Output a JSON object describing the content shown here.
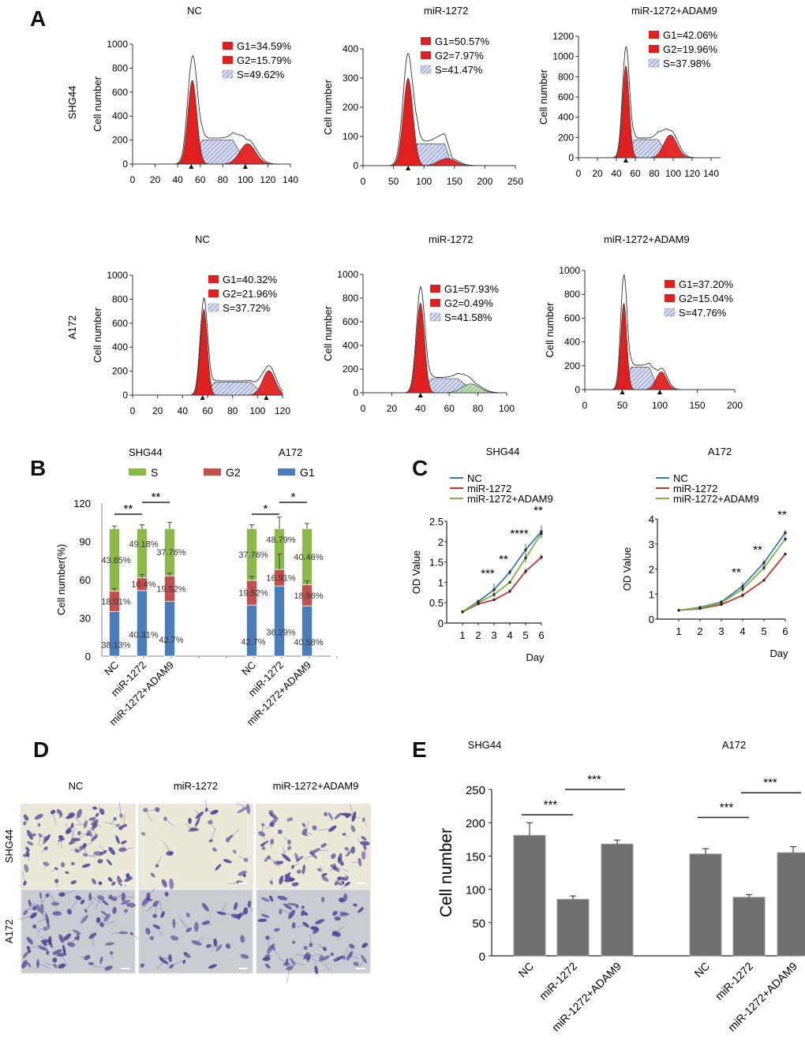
{
  "panels": {
    "A": "A",
    "B": "B",
    "C": "C",
    "D": "D",
    "E": "E"
  },
  "chart_data": [
    {
      "id": "A-SHG44-NC",
      "panel": "A",
      "type": "area",
      "title": "NC",
      "row_label": "SHG44",
      "xlabel": "",
      "ylabel": "Cell number",
      "xlim": [
        0,
        140
      ],
      "xticks": [
        0,
        20,
        40,
        60,
        80,
        100,
        120,
        140
      ],
      "ylim": [
        0,
        1000
      ],
      "yticks": [
        0,
        200,
        400,
        600,
        800,
        1000
      ],
      "legend": [
        {
          "name": "G1",
          "text": "G1=34.59%"
        },
        {
          "name": "G2",
          "text": "G2=15.79%"
        },
        {
          "name": "S",
          "text": "S=49.62%"
        }
      ],
      "peaks": {
        "g1_center": 53,
        "g1_height": 700,
        "g1_width": 4,
        "g2_center": 102,
        "g2_height": 170,
        "g2_width": 7,
        "s_start": 58,
        "s_end": 95,
        "s_height": 200,
        "total_peak": 880
      },
      "markers": [
        52,
        100
      ]
    },
    {
      "id": "A-SHG44-miR",
      "panel": "A",
      "type": "area",
      "title": "miR-1272",
      "row_label": "",
      "xlabel": "",
      "ylabel": "Cell number",
      "xlim": [
        0,
        250
      ],
      "xticks": [
        0,
        50,
        100,
        150,
        200,
        250
      ],
      "ylim": [
        0,
        400
      ],
      "yticks": [
        0,
        100,
        200,
        300,
        400
      ],
      "legend": [
        {
          "name": "G1",
          "text": "G1=50.57%"
        },
        {
          "name": "G2",
          "text": "G2=7.97%"
        },
        {
          "name": "S",
          "text": "S=41.47%"
        }
      ],
      "peaks": {
        "g1_center": 74,
        "g1_height": 300,
        "g1_width": 8,
        "g2_center": 138,
        "g2_height": 25,
        "g2_width": 14,
        "s_start": 85,
        "s_end": 140,
        "s_height": 75,
        "total_peak": 385
      },
      "markers": [
        74
      ]
    },
    {
      "id": "A-SHG44-miRADAM9",
      "panel": "A",
      "type": "area",
      "title": "miR-1272+ADAM9",
      "row_label": "",
      "xlabel": "",
      "ylabel": "Cell number",
      "xlim": [
        0,
        150
      ],
      "xticks": [
        0,
        20,
        40,
        60,
        80,
        100,
        120,
        140
      ],
      "ylim": [
        0,
        1200
      ],
      "yticks": [
        0,
        200,
        400,
        600,
        800,
        1000,
        1200
      ],
      "legend": [
        {
          "name": "G1",
          "text": "G1=42.06%"
        },
        {
          "name": "G2",
          "text": "G2=19.96%"
        },
        {
          "name": "S",
          "text": "S=37.98%"
        }
      ],
      "peaks": {
        "g1_center": 50,
        "g1_height": 910,
        "g1_width": 3.5,
        "g2_center": 97,
        "g2_height": 225,
        "g2_width": 7,
        "s_start": 55,
        "s_end": 90,
        "s_height": 180,
        "total_peak": 1080
      },
      "markers": [
        50
      ]
    },
    {
      "id": "A-A172-NC",
      "panel": "A",
      "type": "area",
      "title": "NC",
      "row_label": "A172",
      "xlabel": "",
      "ylabel": "Cell number",
      "xlim": [
        0,
        120
      ],
      "xticks": [
        0,
        20,
        40,
        60,
        80,
        100,
        120
      ],
      "ylim": [
        0,
        1000
      ],
      "yticks": [
        0,
        200,
        400,
        600,
        800,
        1000
      ],
      "legend": [
        {
          "name": "G1",
          "text": "G1=40.32%"
        },
        {
          "name": "G2",
          "text": "G2=21.96%"
        },
        {
          "name": "S",
          "text": "S=37.72%"
        }
      ],
      "peaks": {
        "g1_center": 57,
        "g1_height": 720,
        "g1_width": 2.8,
        "g2_center": 109,
        "g2_height": 205,
        "g2_width": 5,
        "s_start": 62,
        "s_end": 100,
        "s_height": 110,
        "total_peak": 800
      },
      "markers": [
        56,
        107
      ]
    },
    {
      "id": "A-A172-miR",
      "panel": "A",
      "type": "area",
      "title": "miR-1272",
      "row_label": "",
      "xlabel": "",
      "ylabel": "Cell number",
      "xlim": [
        0,
        100
      ],
      "xticks": [
        0,
        20,
        40,
        60,
        80,
        100
      ],
      "ylim": [
        0,
        1000
      ],
      "yticks": [
        0,
        200,
        400,
        600,
        800,
        1000
      ],
      "legend": [
        {
          "name": "G1",
          "text": "G1=57.93%"
        },
        {
          "name": "G2",
          "text": "G2=0.49%"
        },
        {
          "name": "S",
          "text": "S=41.58%"
        }
      ],
      "peaks": {
        "g1_center": 40,
        "g1_height": 760,
        "g1_width": 2.8,
        "g2_center": 75,
        "g2_height": 75,
        "g2_width": 6,
        "s_start": 44,
        "s_end": 72,
        "s_height": 120,
        "total_peak": 870
      },
      "markers": [
        40
      ]
    },
    {
      "id": "A-A172-miRADAM9",
      "panel": "A",
      "type": "area",
      "title": "miR-1272+ADAM9",
      "row_label": "",
      "xlabel": "",
      "ylabel": "Cell number",
      "xlim": [
        0,
        200
      ],
      "xticks": [
        0,
        50,
        100,
        150,
        200
      ],
      "ylim": [
        0,
        1000
      ],
      "yticks": [
        0,
        200,
        400,
        600,
        800,
        1000
      ],
      "legend": [
        {
          "name": "G1",
          "text": "G1=37.20%"
        },
        {
          "name": "G2",
          "text": "G2=15.04%"
        },
        {
          "name": "S",
          "text": "S=47.76%"
        }
      ],
      "peaks": {
        "g1_center": 52,
        "g1_height": 730,
        "g1_width": 4,
        "g2_center": 102,
        "g2_height": 150,
        "g2_width": 7,
        "s_start": 58,
        "s_end": 92,
        "s_height": 190,
        "total_peak": 960
      },
      "markers": [
        50,
        100
      ]
    },
    {
      "id": "B",
      "panel": "B",
      "type": "bar",
      "stacked": true,
      "ylabel": "Cell number(%)",
      "ylim": [
        0,
        120
      ],
      "yticks": [
        0,
        30,
        60,
        90,
        120
      ],
      "legend": [
        {
          "name": "S",
          "color": "#8db84a"
        },
        {
          "name": "G2",
          "color": "#c0504d"
        },
        {
          "name": "G1",
          "color": "#4a7ebb"
        }
      ],
      "groups": [
        {
          "title": "SHG44",
          "categories": [
            "NC",
            "miR-1272",
            "miR-1272+ADAM9"
          ],
          "G1": [
            35,
            51.5,
            43
          ],
          "G2": [
            16,
            10,
            20
          ],
          "S": [
            49,
            38.5,
            37
          ],
          "labels_G1": [
            "38.13%",
            "40.31%",
            "42.7%"
          ],
          "labels_G2": [
            "18.01%",
            "10.4%",
            "19.52%"
          ],
          "labels_S": [
            "43.85%",
            "49.18%",
            "37.76%"
          ],
          "err_top": [
            2,
            3,
            5
          ],
          "err_g2": [
            2,
            2.5,
            2
          ],
          "sig": [
            {
              "from": 0,
              "to": 1,
              "label": "**"
            },
            {
              "from": 1,
              "to": 2,
              "label": "**"
            }
          ]
        },
        {
          "title": "A172",
          "categories": [
            "NC",
            "miR-1272",
            "miR-1272+ADAM9"
          ],
          "G1": [
            40,
            55,
            39.5
          ],
          "G2": [
            19.5,
            13,
            16.5
          ],
          "S": [
            40.5,
            32,
            44
          ],
          "labels_G1": [
            "42.7%",
            "36.29%",
            "40.58%"
          ],
          "labels_G2": [
            "19.52%",
            "16.91%",
            "18.96%"
          ],
          "labels_S": [
            "37.76%",
            "48.79%",
            "40.46%"
          ],
          "err_top": [
            3,
            9,
            4
          ],
          "err_g2": [
            3,
            12,
            3
          ],
          "sig": [
            {
              "from": 0,
              "to": 1,
              "label": "*"
            },
            {
              "from": 1,
              "to": 2,
              "label": "*"
            }
          ]
        }
      ]
    },
    {
      "id": "C-SHG44",
      "panel": "C",
      "type": "line",
      "title": "SHG44",
      "xlabel": "Day",
      "ylabel": "OD Value",
      "x": [
        1,
        2,
        3,
        4,
        5,
        6
      ],
      "xlim": [
        0,
        6
      ],
      "ylim": [
        0,
        2.5
      ],
      "yticks": [
        0,
        0.5,
        1,
        1.5,
        2,
        2.5
      ],
      "series": [
        {
          "name": "NC",
          "color": "#3a78c4",
          "values": [
            0.28,
            0.53,
            0.82,
            1.25,
            1.8,
            2.25
          ],
          "err": [
            0.02,
            0.05,
            0.15,
            0.07,
            0.15,
            0.15
          ]
        },
        {
          "name": "miR-1272",
          "color": "#c93232",
          "values": [
            0.27,
            0.47,
            0.57,
            0.78,
            1.27,
            1.62
          ],
          "err": [
            0.02,
            0.03,
            0.03,
            0.04,
            0.08,
            0.08
          ]
        },
        {
          "name": "miR-1272+ADAM9",
          "color": "#7ab83a",
          "values": [
            0.28,
            0.5,
            0.7,
            1.0,
            1.6,
            2.2
          ],
          "err": [
            0.02,
            0.04,
            0.06,
            0.03,
            0.12,
            0.12
          ]
        }
      ],
      "annotations": [
        {
          "x": 3,
          "label": "***"
        },
        {
          "x": 4,
          "label": "**"
        },
        {
          "x": 5,
          "label": "****"
        },
        {
          "x": 6,
          "label": "**"
        }
      ]
    },
    {
      "id": "C-A172",
      "panel": "C",
      "type": "line",
      "title": "A172",
      "xlabel": "Day",
      "ylabel": "OD Value",
      "x": [
        1,
        2,
        3,
        4,
        5,
        6
      ],
      "xlim": [
        0,
        6
      ],
      "ylim": [
        0,
        4
      ],
      "yticks": [
        0,
        1,
        2,
        3,
        4
      ],
      "series": [
        {
          "name": "NC",
          "color": "#3a78c4",
          "values": [
            0.35,
            0.47,
            0.68,
            1.32,
            2.25,
            3.45
          ],
          "err": [
            0.02,
            0.04,
            0.08,
            0.15,
            0.12,
            0.12
          ]
        },
        {
          "name": "miR-1272",
          "color": "#c93232",
          "values": [
            0.35,
            0.42,
            0.58,
            0.95,
            1.55,
            2.6
          ],
          "err": [
            0.02,
            0.03,
            0.05,
            0.1,
            0.03,
            0.03
          ]
        },
        {
          "name": "miR-1272+ADAM9",
          "color": "#7ab83a",
          "values": [
            0.35,
            0.45,
            0.65,
            1.2,
            2.05,
            3.2
          ],
          "err": [
            0.02,
            0.03,
            0.06,
            0.12,
            0.12,
            0.1
          ]
        }
      ],
      "annotations": [
        {
          "x": 4,
          "label": "**"
        },
        {
          "x": 5,
          "label": "**"
        },
        {
          "x": 6,
          "label": "**"
        }
      ]
    },
    {
      "id": "E",
      "panel": "E",
      "type": "bar",
      "ylabel": "Cell number",
      "ylim": [
        0,
        250
      ],
      "yticks": [
        0,
        50,
        100,
        150,
        200,
        250
      ],
      "color": "#6f6f6f",
      "groups": [
        {
          "title": "SHG44",
          "categories": [
            "NC",
            "miR-1272",
            "miR-1272+ADAM9"
          ],
          "values": [
            181,
            85,
            168
          ],
          "err": [
            19,
            5,
            6
          ],
          "sig": [
            {
              "from": 0,
              "to": 1,
              "label": "***",
              "y": 212
            },
            {
              "from": 1,
              "to": 2,
              "label": "***",
              "y": 250
            }
          ]
        },
        {
          "title": "A172",
          "categories": [
            "NC",
            "miR-1272",
            "miR-1272+ADAM9"
          ],
          "values": [
            153,
            88,
            155
          ],
          "err": [
            8,
            4,
            9
          ],
          "sig": [
            {
              "from": 0,
              "to": 1,
              "label": "***",
              "y": 208
            },
            {
              "from": 1,
              "to": 2,
              "label": "***",
              "y": 245
            }
          ]
        }
      ]
    }
  ],
  "panelD": {
    "columns": [
      "NC",
      "miR-1272",
      "miR-1272+ADAM9"
    ],
    "rows": [
      "SHG44",
      "A172"
    ],
    "density": [
      [
        0.85,
        0.35,
        0.8
      ],
      [
        0.75,
        0.45,
        0.7
      ]
    ]
  },
  "colors": {
    "g1": "#e0201f",
    "g2": "#e0201f",
    "s_hatch": "#4a5fa8",
    "s_fill": "#d6dbef",
    "green_g2": "#9cc79a"
  }
}
